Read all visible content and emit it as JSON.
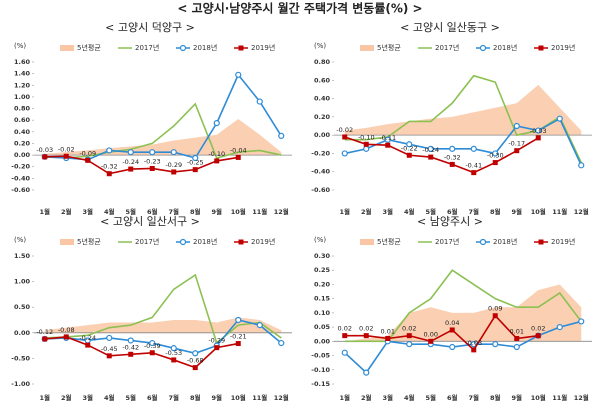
{
  "title": "< 고양시·남양주시 월간 주택가격 변동률(%) >",
  "chart_data": [
    {
      "type": "line",
      "subtitle": "< 고양시 덕양구 >",
      "unit": "(%)",
      "categories": [
        "1월",
        "2월",
        "3월",
        "4월",
        "5월",
        "6월",
        "7월",
        "8월",
        "9월",
        "10월",
        "11월",
        "12월"
      ],
      "ylim": [
        -0.6,
        1.6
      ],
      "yticks": [
        {
          "value": -0.6,
          "label": "-0.60"
        },
        {
          "value": -0.4,
          "label": "-0.40"
        },
        {
          "value": -0.2,
          "label": "-0.20"
        },
        {
          "value": 0,
          "label": "0.00"
        },
        {
          "value": 0.2,
          "label": "0.20"
        },
        {
          "value": 0.4,
          "label": "0.40"
        },
        {
          "value": 0.6,
          "label": "0.60"
        },
        {
          "value": 0.8,
          "label": "0.80"
        },
        {
          "value": 1.0,
          "label": "1.00"
        },
        {
          "value": 1.2,
          "label": "1.20"
        },
        {
          "value": 1.4,
          "label": "1.40"
        },
        {
          "value": 1.6,
          "label": "1.60"
        }
      ],
      "grid": false,
      "series": [
        {
          "name": "5년평균",
          "color": "#f9c7a5",
          "style": "area",
          "values": [
            0.02,
            0.05,
            0.08,
            0.12,
            0.15,
            0.18,
            0.25,
            0.3,
            0.35,
            0.62,
            0.35,
            0.05
          ]
        },
        {
          "name": "2017년",
          "color": "#8cc152",
          "style": "line",
          "values": [
            -0.03,
            -0.05,
            -0.02,
            0.05,
            0.1,
            0.2,
            0.5,
            0.88,
            -0.05,
            0.05,
            0.08,
            0.0
          ]
        },
        {
          "name": "2018년",
          "color": "#2e8bd6",
          "style": "circle",
          "values": [
            -0.03,
            -0.05,
            -0.08,
            0.08,
            0.05,
            0.05,
            0.05,
            -0.05,
            0.55,
            1.38,
            0.92,
            0.33
          ]
        },
        {
          "name": "2019년",
          "color": "#c00000",
          "style": "square",
          "values": [
            -0.03,
            -0.02,
            -0.09,
            -0.32,
            -0.24,
            -0.23,
            -0.29,
            -0.25,
            -0.1,
            -0.04,
            null,
            null
          ],
          "value_labels": [
            "-0.03",
            "-0.02",
            "-0.09",
            "-0.32",
            "-0.24",
            "-0.23",
            "-0.29",
            "-0.25",
            "-0.10",
            "-0.04",
            null,
            null
          ]
        }
      ]
    },
    {
      "type": "line",
      "subtitle": "< 고양시 일산동구 >",
      "unit": "(%)",
      "categories": [
        "1월",
        "2월",
        "3월",
        "4월",
        "5월",
        "6월",
        "7월",
        "8월",
        "9월",
        "10월",
        "11월",
        "12월"
      ],
      "ylim": [
        -0.6,
        0.8
      ],
      "yticks": [
        {
          "value": -0.6,
          "label": "-0.60"
        },
        {
          "value": -0.4,
          "label": "-0.40"
        },
        {
          "value": -0.2,
          "label": "-0.20"
        },
        {
          "value": 0,
          "label": "0.00"
        },
        {
          "value": 0.2,
          "label": "0.20"
        },
        {
          "value": 0.4,
          "label": "0.40"
        },
        {
          "value": 0.6,
          "label": "0.60"
        },
        {
          "value": 0.8,
          "label": "0.80"
        }
      ],
      "grid": false,
      "series": [
        {
          "name": "5년평균",
          "color": "#f9c7a5",
          "style": "area",
          "values": [
            0.05,
            0.08,
            0.12,
            0.15,
            0.18,
            0.2,
            0.25,
            0.3,
            0.35,
            0.55,
            0.3,
            0.05
          ]
        },
        {
          "name": "2017년",
          "color": "#8cc152",
          "style": "line",
          "values": [
            -0.05,
            -0.05,
            -0.02,
            0.15,
            0.15,
            0.35,
            0.65,
            0.58,
            0.0,
            0.05,
            0.2,
            -0.3
          ]
        },
        {
          "name": "2018년",
          "color": "#2e8bd6",
          "style": "circle",
          "values": [
            -0.2,
            -0.15,
            -0.05,
            -0.1,
            -0.15,
            -0.15,
            -0.15,
            -0.2,
            0.1,
            0.05,
            0.18,
            -0.33
          ]
        },
        {
          "name": "2019년",
          "color": "#c00000",
          "style": "square",
          "values": [
            -0.02,
            -0.1,
            -0.11,
            -0.22,
            -0.24,
            -0.32,
            -0.41,
            -0.3,
            -0.17,
            -0.03,
            null,
            null
          ],
          "value_labels": [
            "-0.02",
            "-0.10",
            "-0.11",
            "-0.22",
            "-0.24",
            "-0.32",
            "-0.41",
            "-0.30",
            "-0.17",
            "-0.03",
            null,
            null
          ]
        }
      ]
    },
    {
      "type": "line",
      "subtitle": "< 고양시 일산서구 >",
      "unit": "(%)",
      "categories": [
        "1월",
        "2월",
        "3월",
        "4월",
        "5월",
        "6월",
        "7월",
        "8월",
        "9월",
        "10월",
        "11월",
        "12월"
      ],
      "ylim": [
        -1.0,
        1.5
      ],
      "yticks": [
        {
          "value": -1.0,
          "label": "-1.00"
        },
        {
          "value": -0.5,
          "label": "-0.50"
        },
        {
          "value": 0,
          "label": "0.00"
        },
        {
          "value": 0.5,
          "label": "0.50"
        },
        {
          "value": 1.0,
          "label": "1.00"
        },
        {
          "value": 1.5,
          "label": "1.50"
        }
      ],
      "grid": false,
      "series": [
        {
          "name": "5년평균",
          "color": "#f9c7a5",
          "style": "area",
          "values": [
            0.05,
            0.1,
            0.15,
            0.2,
            0.2,
            0.2,
            0.25,
            0.25,
            0.2,
            0.3,
            0.25,
            0.05
          ]
        },
        {
          "name": "2017년",
          "color": "#8cc152",
          "style": "line",
          "values": [
            -0.1,
            -0.08,
            -0.05,
            0.1,
            0.15,
            0.3,
            0.85,
            1.13,
            -0.2,
            0.15,
            0.2,
            -0.1
          ]
        },
        {
          "name": "2018년",
          "color": "#2e8bd6",
          "style": "circle",
          "values": [
            -0.12,
            -0.1,
            -0.15,
            -0.1,
            -0.15,
            -0.2,
            -0.3,
            -0.4,
            -0.25,
            0.25,
            0.15,
            -0.2
          ]
        },
        {
          "name": "2019년",
          "color": "#c00000",
          "style": "square",
          "values": [
            -0.12,
            -0.08,
            -0.24,
            -0.45,
            -0.42,
            -0.39,
            -0.53,
            -0.68,
            -0.29,
            -0.21,
            null,
            null
          ],
          "value_labels": [
            "-0.12",
            "-0.08",
            "-0.24",
            "-0.45",
            "-0.42",
            "-0.39",
            "-0.53",
            "-0.68",
            "-0.29",
            "-0.21",
            null,
            null
          ]
        }
      ]
    },
    {
      "type": "line",
      "subtitle": "< 남양주시 >",
      "unit": "(%)",
      "categories": [
        "1월",
        "2월",
        "3월",
        "4월",
        "5월",
        "6월",
        "7월",
        "8월",
        "9월",
        "10월",
        "11월",
        "12월"
      ],
      "ylim": [
        -0.15,
        0.3
      ],
      "yticks": [
        {
          "value": -0.15,
          "label": "-0.15"
        },
        {
          "value": -0.1,
          "label": "-0.10"
        },
        {
          "value": -0.05,
          "label": "-0.05"
        },
        {
          "value": 0,
          "label": "0.00"
        },
        {
          "value": 0.05,
          "label": "0.05"
        },
        {
          "value": 0.1,
          "label": "0.10"
        },
        {
          "value": 0.15,
          "label": "0.15"
        },
        {
          "value": 0.2,
          "label": "0.20"
        },
        {
          "value": 0.25,
          "label": "0.25"
        },
        {
          "value": 0.3,
          "label": "0.30"
        }
      ],
      "grid": false,
      "series": [
        {
          "name": "5년평균",
          "color": "#f9c7a5",
          "style": "area",
          "values": [
            0.0,
            0.01,
            0.02,
            0.1,
            0.12,
            0.1,
            0.1,
            0.12,
            0.12,
            0.18,
            0.2,
            0.12
          ]
        },
        {
          "name": "2017년",
          "color": "#8cc152",
          "style": "line",
          "values": [
            0.0,
            0.0,
            0.0,
            0.1,
            0.15,
            0.25,
            0.2,
            0.15,
            0.12,
            0.12,
            0.17,
            0.07
          ]
        },
        {
          "name": "2018년",
          "color": "#2e8bd6",
          "style": "circle",
          "values": [
            -0.04,
            -0.11,
            0.0,
            -0.01,
            -0.01,
            -0.02,
            -0.01,
            -0.01,
            -0.02,
            0.02,
            0.05,
            0.07
          ]
        },
        {
          "name": "2019년",
          "color": "#c00000",
          "style": "square",
          "values": [
            0.02,
            0.02,
            0.01,
            0.02,
            0.0,
            0.04,
            -0.03,
            0.09,
            0.01,
            0.02,
            null,
            null
          ],
          "value_labels": [
            "0.02",
            "0.02",
            "0.01",
            "0.02",
            "0.00",
            "0.04",
            "-0.03",
            "0.09",
            "0.01",
            "0.02",
            null,
            null
          ]
        }
      ]
    }
  ]
}
